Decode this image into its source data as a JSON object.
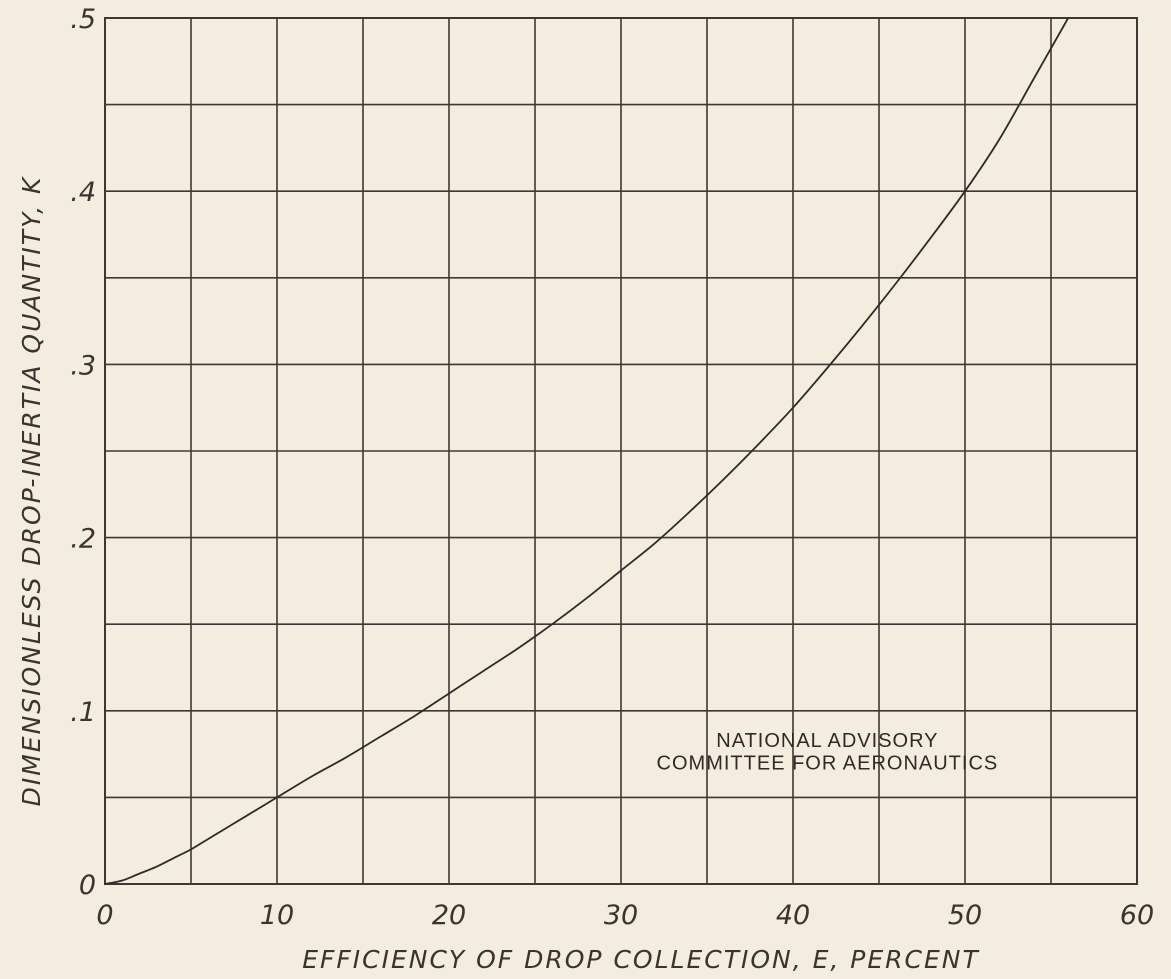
{
  "chart_data": {
    "type": "line",
    "title": "",
    "xlabel": "EFFICIENCY OF DROP COLLECTION, E,  PERCENT",
    "ylabel": "DIMENSIONLESS DROP-INERTIA QUANTITY, K",
    "xlim": [
      0,
      60
    ],
    "ylim": [
      0,
      0.5
    ],
    "x_major_ticks": [
      0,
      10,
      20,
      30,
      40,
      50,
      60
    ],
    "x_tick_labels": [
      "0",
      "10",
      "20",
      "30",
      "40",
      "50",
      "60"
    ],
    "y_major_ticks": [
      0,
      0.1,
      0.2,
      0.3,
      0.4,
      0.5
    ],
    "y_tick_labels": [
      "0",
      ".1",
      ".2",
      ".3",
      ".4",
      ".5"
    ],
    "x_minor_step": 5,
    "y_minor_step": 0.05,
    "grid": true,
    "series": [
      {
        "x": [
          0,
          1,
          2,
          3,
          4,
          5,
          6,
          8,
          10,
          12,
          14,
          16,
          18,
          20,
          22,
          24,
          26,
          28,
          30,
          32,
          34,
          36,
          38,
          40,
          42,
          44,
          46,
          48,
          50,
          52,
          54,
          56
        ],
        "y": [
          0,
          0.002,
          0.006,
          0.01,
          0.015,
          0.02,
          0.026,
          0.038,
          0.05,
          0.062,
          0.073,
          0.085,
          0.097,
          0.11,
          0.123,
          0.136,
          0.15,
          0.165,
          0.181,
          0.197,
          0.215,
          0.234,
          0.254,
          0.275,
          0.298,
          0.322,
          0.347,
          0.373,
          0.4,
          0.43,
          0.465,
          0.5
        ],
        "color": "#2e2a26"
      }
    ],
    "annotations": [
      {
        "text": "NATIONAL ADVISORY",
        "x": 42,
        "y": 0.079
      },
      {
        "text": "COMMITTEE FOR AERONAUTICS",
        "x": 42,
        "y": 0.066
      }
    ]
  }
}
